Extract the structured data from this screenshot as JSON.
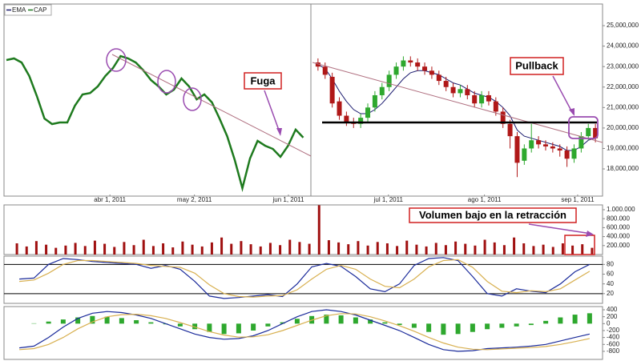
{
  "chart_data": [
    {
      "type": "line",
      "xlim": [
        0,
        40
      ],
      "x": [
        0,
        1,
        2,
        3,
        4,
        5,
        6,
        7,
        8,
        9,
        10,
        11,
        12,
        13,
        14,
        15,
        16,
        17,
        18,
        19,
        20,
        21,
        22,
        23,
        24,
        25,
        26,
        27,
        28,
        29,
        30,
        31,
        32,
        33,
        34,
        35,
        36,
        37,
        38,
        39
      ],
      "xticks": [
        {
          "value": 13.6,
          "label": "abr 1, 2011"
        },
        {
          "value": 24.7,
          "label": "may 2, 2011"
        },
        {
          "value": 37.05,
          "label": "jun 1, 2011"
        }
      ],
      "ylim": [
        16750000,
        25940000
      ],
      "series": [
        {
          "name": "CAP",
          "color": "#1e7a1e",
          "values": [
            23320000,
            23400000,
            23200000,
            22540000,
            21560000,
            20460000,
            20190000,
            20270000,
            20270000,
            21090000,
            21640000,
            21710000,
            22030000,
            22540000,
            22930000,
            23510000,
            23400000,
            23200000,
            22810000,
            22340000,
            22030000,
            21640000,
            21870000,
            22420000,
            22030000,
            21400000,
            21640000,
            21250000,
            20460000,
            19600000,
            18430000,
            17060000,
            18510000,
            19370000,
            19130000,
            18980000,
            18590000,
            19130000,
            19920000,
            19530000
          ]
        }
      ],
      "annotations": [
        "Fuga"
      ]
    },
    {
      "type": "candlestick",
      "xlim": [
        -1,
        40
      ],
      "x": [
        0,
        1,
        2,
        3,
        4,
        5,
        6,
        7,
        8,
        9,
        10,
        11,
        12,
        13,
        14,
        15,
        16,
        17,
        18,
        19,
        20,
        21,
        22,
        23,
        24,
        25,
        26,
        27,
        28,
        29,
        30,
        31,
        32,
        33,
        34,
        35,
        36,
        37,
        38,
        39
      ],
      "xticks": [
        {
          "value": 9.9,
          "label": "jul 1, 2011"
        },
        {
          "value": 23.4,
          "label": "ago 1, 2011"
        },
        {
          "value": 36.5,
          "label": "sep 1, 2011"
        }
      ],
      "ylim": [
        16750000,
        25940000
      ],
      "yticks": [
        {
          "value": 18000000,
          "label": "18,000,000"
        },
        {
          "value": 19000000,
          "label": "19,000,000"
        },
        {
          "value": 20000000,
          "label": "20,000,000"
        },
        {
          "value": 21000000,
          "label": "21,000,000"
        },
        {
          "value": 22000000,
          "label": "22,000,000"
        },
        {
          "value": 23000000,
          "label": "23,000,000"
        },
        {
          "value": 24000000,
          "label": "24,000,000"
        },
        {
          "value": 25000000,
          "label": "25,000,000"
        }
      ],
      "up_color": "#2ea82e",
      "down_color": "#b01818",
      "open": [
        23200000,
        23000000,
        22500000,
        21300000,
        20600000,
        20300000,
        20200000,
        20500000,
        21000000,
        21600000,
        22000000,
        22600000,
        23000000,
        23300000,
        23200000,
        23000000,
        22800000,
        22600000,
        22300000,
        22000000,
        21700000,
        21900000,
        21600000,
        21200000,
        21600000,
        21300000,
        20800000,
        20200000,
        19600000,
        18400000,
        19000000,
        19400000,
        19200000,
        19100000,
        19000000,
        18900000,
        18500000,
        19000000,
        19600000,
        20000000
      ],
      "high": [
        23400000,
        23200000,
        22700000,
        21500000,
        20800000,
        20500000,
        20700000,
        21200000,
        21800000,
        22200000,
        22800000,
        23200000,
        23500000,
        23500000,
        23400000,
        23200000,
        23000000,
        22800000,
        22500000,
        22200000,
        22100000,
        22100000,
        21800000,
        21800000,
        21800000,
        21500000,
        21000000,
        20400000,
        19800000,
        19200000,
        20200000,
        19600000,
        19400000,
        19300000,
        19200000,
        19100000,
        19200000,
        19800000,
        20200000,
        20200000
      ],
      "low": [
        22800000,
        22400000,
        21000000,
        20400000,
        20100000,
        20000000,
        20000000,
        20300000,
        20800000,
        21400000,
        21800000,
        22400000,
        22800000,
        23000000,
        22800000,
        22600000,
        22400000,
        22100000,
        21800000,
        21500000,
        21500000,
        21400000,
        21000000,
        21000000,
        21100000,
        20600000,
        20000000,
        19000000,
        17600000,
        18200000,
        18800000,
        19000000,
        18900000,
        18800000,
        18600000,
        18100000,
        18300000,
        18800000,
        19400000,
        19300000
      ],
      "close": [
        23000000,
        22600000,
        21200000,
        20600000,
        20300000,
        20200000,
        20500000,
        21000000,
        21600000,
        22000000,
        22600000,
        23000000,
        23300000,
        23200000,
        23000000,
        22800000,
        22600000,
        22300000,
        22000000,
        21700000,
        21900000,
        21600000,
        21200000,
        21600000,
        21300000,
        20800000,
        20200000,
        19600000,
        18300000,
        19000000,
        19400000,
        19200000,
        19100000,
        19000000,
        18900000,
        18500000,
        19000000,
        19600000,
        20000000,
        19500000
      ],
      "ema": {
        "name": "EMA",
        "color": "#1a1a6e",
        "values": [
          23100000,
          22900000,
          22400000,
          21800000,
          21300000,
          20900000,
          20700000,
          20700000,
          20900000,
          21200000,
          21600000,
          22000000,
          22400000,
          22700000,
          22800000,
          22800000,
          22700000,
          22600000,
          22400000,
          22200000,
          22100000,
          21900000,
          21700000,
          21600000,
          21500000,
          21300000,
          21000000,
          20600000,
          19900000,
          19600000,
          19500000,
          19400000,
          19300000,
          19200000,
          19100000,
          18900000,
          18900000,
          19100000,
          19400000,
          19500000
        ]
      },
      "annotations": [
        "Pullback"
      ]
    },
    {
      "type": "bar",
      "color": "#a01010",
      "ylim": [
        0,
        1107000
      ],
      "yticks": [
        {
          "value": 200000,
          "label": "200.000"
        },
        {
          "value": 400000,
          "label": "400.000"
        },
        {
          "value": 600000,
          "label": "600.000"
        },
        {
          "value": 800000,
          "label": "800.000"
        },
        {
          "value": 1000000,
          "label": "1.000.000"
        }
      ],
      "values": [
        250000,
        180000,
        300000,
        220000,
        150000,
        200000,
        260000,
        190000,
        310000,
        240000,
        170000,
        280000,
        210000,
        330000,
        190000,
        250000,
        160000,
        290000,
        220000,
        180000,
        270000,
        380000,
        240000,
        300000,
        230000,
        180000,
        260000,
        210000,
        330000,
        280000,
        240000,
        1100000,
        320000,
        270000,
        230000,
        300000,
        200000,
        280000,
        250000,
        190000,
        310000,
        220000,
        180000,
        260000,
        210000,
        290000,
        240000,
        200000,
        330000,
        270000,
        210000,
        380000,
        250000,
        190000,
        220000,
        170000,
        250000,
        200000,
        230000,
        150000
      ],
      "annotations": [
        "Volumen bajo en la retracción"
      ]
    },
    {
      "type": "line",
      "ylim": [
        0,
        97
      ],
      "yticks": [
        20,
        40,
        60,
        80
      ],
      "levels": [
        20,
        80
      ],
      "series": [
        {
          "color": "#1a2a9a",
          "values": [
            50,
            52,
            80,
            92,
            90,
            86,
            84,
            82,
            80,
            72,
            78,
            70,
            45,
            15,
            10,
            12,
            15,
            18,
            14,
            40,
            75,
            82,
            76,
            55,
            30,
            24,
            40,
            78,
            92,
            94,
            88,
            55,
            20,
            15,
            30,
            25,
            22,
            40,
            65,
            80
          ]
        },
        {
          "color": "#d8b050",
          "values": [
            45,
            48,
            62,
            80,
            88,
            88,
            86,
            84,
            82,
            78,
            76,
            74,
            62,
            38,
            20,
            14,
            13,
            15,
            16,
            28,
            50,
            70,
            78,
            70,
            50,
            35,
            32,
            50,
            75,
            88,
            90,
            74,
            45,
            25,
            22,
            26,
            24,
            30,
            48,
            66
          ]
        }
      ]
    },
    {
      "type": "macd",
      "ylim": [
        -1033,
        493
      ],
      "yticks": [
        400,
        200,
        0,
        -200,
        -400,
        -600,
        -800
      ],
      "color": "#2ea82e",
      "values": [
        0,
        10,
        60,
        120,
        180,
        220,
        200,
        160,
        100,
        40,
        -20,
        -80,
        -160,
        -240,
        -300,
        -280,
        -200,
        -80,
        40,
        140,
        220,
        260,
        240,
        180,
        120,
        40,
        -40,
        -120,
        -240,
        -320,
        -300,
        -240,
        -160,
        -120,
        -80,
        -40,
        80,
        180,
        260,
        300
      ],
      "series": [
        {
          "color": "#1a2a9a",
          "values": [
            -700,
            -650,
            -400,
            -100,
            150,
            300,
            350,
            320,
            250,
            150,
            0,
            -150,
            -300,
            -400,
            -450,
            -430,
            -350,
            -200,
            0,
            200,
            350,
            400,
            350,
            250,
            100,
            -50,
            -200,
            -400,
            -600,
            -750,
            -800,
            -780,
            -720,
            -700,
            -680,
            -650,
            -600,
            -500,
            -400,
            -300
          ]
        },
        {
          "color": "#d8b050",
          "values": [
            -750,
            -720,
            -600,
            -400,
            -150,
            50,
            200,
            260,
            270,
            230,
            150,
            30,
            -100,
            -230,
            -330,
            -390,
            -380,
            -320,
            -200,
            -50,
            100,
            230,
            290,
            280,
            200,
            80,
            -60,
            -220,
            -400,
            -560,
            -680,
            -740,
            -750,
            -730,
            -710,
            -690,
            -660,
            -600,
            -520,
            -430
          ]
        }
      ]
    }
  ]
}
